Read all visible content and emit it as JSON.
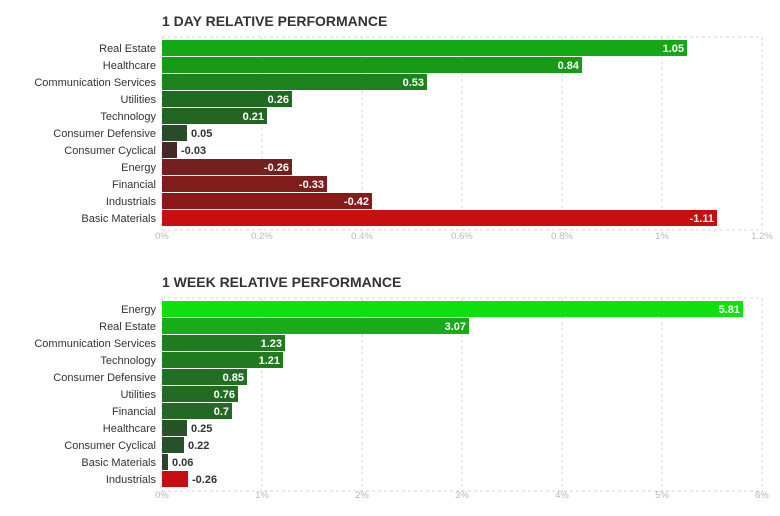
{
  "chart_data": [
    {
      "type": "bar",
      "title": "1 DAY RELATIVE PERFORMANCE",
      "orientation": "horizontal",
      "categories": [
        "Real Estate",
        "Healthcare",
        "Communication Services",
        "Utilities",
        "Technology",
        "Consumer Defensive",
        "Consumer Cyclical",
        "Energy",
        "Financial",
        "Industrials",
        "Basic Materials"
      ],
      "values": [
        1.05,
        0.84,
        0.53,
        0.26,
        0.21,
        0.05,
        -0.03,
        -0.26,
        -0.33,
        -0.42,
        -1.11
      ],
      "value_labels": [
        "1.05",
        "0.84",
        "0.53",
        "0.26",
        "0.21",
        "0.05",
        "-0.03",
        "-0.26",
        "-0.33",
        "-0.42",
        "-1.11"
      ],
      "bar_length": "absolute value",
      "xticks": [
        "0%",
        "0.2%",
        "0.4%",
        "0.6%",
        "0.8%",
        "1%",
        "1.2%"
      ],
      "xlim": [
        0,
        1.2
      ],
      "grid": true,
      "colors": {
        "positive_strong": "#14a814",
        "positive_weak": "#2b3a2b",
        "negative_weak": "#3a2a2a",
        "negative_strong": "#c80e0e"
      }
    },
    {
      "type": "bar",
      "title": "1 WEEK RELATIVE PERFORMANCE",
      "orientation": "horizontal",
      "categories": [
        "Energy",
        "Real Estate",
        "Communication Services",
        "Technology",
        "Consumer Defensive",
        "Utilities",
        "Financial",
        "Healthcare",
        "Consumer Cyclical",
        "Basic Materials",
        "Industrials"
      ],
      "values": [
        5.81,
        3.07,
        1.23,
        1.21,
        0.85,
        0.76,
        0.7,
        0.25,
        0.22,
        0.06,
        -0.26
      ],
      "value_labels": [
        "5.81",
        "3.07",
        "1.23",
        "1.21",
        "0.85",
        "0.76",
        "0.7",
        "0.25",
        "0.22",
        "0.06",
        "-0.26"
      ],
      "bar_length": "absolute value",
      "xticks": [
        "0%",
        "1%",
        "2%",
        "3%",
        "4%",
        "5%",
        "6%"
      ],
      "xlim": [
        0,
        6
      ],
      "grid": true,
      "colors": {
        "positive_strong": "#10e010",
        "positive_weak": "#2b3a2b",
        "negative_weak": "#3a2a2a",
        "negative_strong": "#c80e0e"
      }
    }
  ]
}
